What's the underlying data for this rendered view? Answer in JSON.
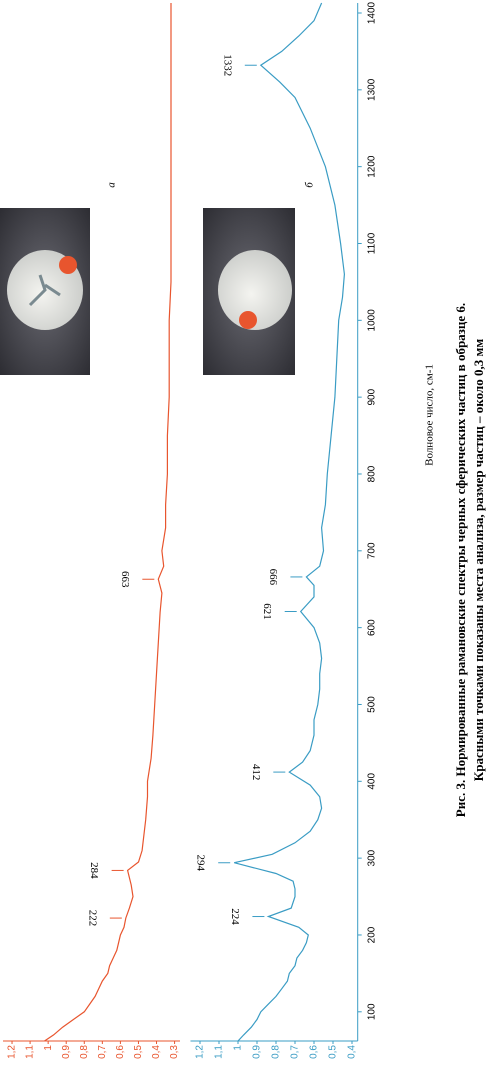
{
  "chart_data": [
    {
      "type": "line",
      "color": "#e8552e",
      "xlim": [
        62,
        1413
      ],
      "ylim": [
        0.27,
        1.25
      ],
      "yticks": [
        {
          "value": 1.2,
          "label": "1,2"
        },
        {
          "value": 1.1,
          "label": "1,1"
        },
        1,
        {
          "value": 0.9,
          "label": "0,9"
        },
        {
          "value": 0.8,
          "label": "0,8"
        },
        {
          "value": 0.7,
          "label": "0,7"
        },
        {
          "value": 0.6,
          "label": "0,6"
        },
        {
          "value": 0.5,
          "label": "0,5"
        },
        {
          "value": 0.4,
          "label": "0,4"
        },
        {
          "value": 0.3,
          "label": "0,3"
        }
      ],
      "x": [
        62,
        70,
        80,
        90,
        100,
        110,
        120,
        130,
        140,
        150,
        160,
        170,
        180,
        190,
        200,
        210,
        222,
        235,
        250,
        265,
        284,
        295,
        310,
        330,
        350,
        380,
        400,
        430,
        460,
        500,
        540,
        580,
        620,
        645,
        663,
        680,
        700,
        730,
        760,
        800,
        850,
        900,
        950,
        1000,
        1050,
        1100,
        1150,
        1200,
        1250,
        1300,
        1350,
        1413
      ],
      "values": [
        1.02,
        0.97,
        0.92,
        0.86,
        0.8,
        0.77,
        0.74,
        0.72,
        0.7,
        0.67,
        0.66,
        0.64,
        0.62,
        0.61,
        0.6,
        0.58,
        0.57,
        0.55,
        0.53,
        0.54,
        0.56,
        0.5,
        0.48,
        0.47,
        0.46,
        0.45,
        0.45,
        0.43,
        0.42,
        0.41,
        0.4,
        0.39,
        0.38,
        0.37,
        0.39,
        0.36,
        0.37,
        0.35,
        0.35,
        0.34,
        0.34,
        0.33,
        0.33,
        0.33,
        0.32,
        0.32,
        0.32,
        0.32,
        0.32,
        0.32,
        0.32,
        0.32
      ],
      "peaks": [
        222,
        284,
        663
      ],
      "inset_label": "а"
    },
    {
      "type": "line",
      "color": "#3a9cc4",
      "xlim": [
        62,
        1413
      ],
      "ylim": [
        0.37,
        1.25
      ],
      "xlabel": "Волновое число, см-1",
      "xticks": [
        100,
        200,
        300,
        400,
        500,
        600,
        700,
        800,
        900,
        1000,
        1100,
        1200,
        1300,
        1400
      ],
      "yticks": [
        {
          "value": 1.2,
          "label": "1,2"
        },
        {
          "value": 1.1,
          "label": "1,1"
        },
        1,
        {
          "value": 0.9,
          "label": "0,9"
        },
        {
          "value": 0.8,
          "label": "0,8"
        },
        {
          "value": 0.7,
          "label": "0,7"
        },
        {
          "value": 0.6,
          "label": "0,6"
        },
        {
          "value": 0.5,
          "label": "0,5"
        },
        {
          "value": 0.4,
          "label": "0,4"
        }
      ],
      "x": [
        62,
        70,
        80,
        90,
        100,
        110,
        120,
        130,
        140,
        150,
        160,
        170,
        180,
        190,
        200,
        210,
        224,
        235,
        250,
        260,
        270,
        280,
        294,
        305,
        320,
        335,
        350,
        365,
        380,
        395,
        412,
        425,
        440,
        460,
        480,
        500,
        520,
        540,
        560,
        580,
        600,
        621,
        640,
        655,
        666,
        680,
        700,
        730,
        760,
        800,
        850,
        900,
        950,
        1000,
        1030,
        1060,
        1100,
        1150,
        1200,
        1250,
        1290,
        1310,
        1332,
        1350,
        1370,
        1390,
        1413
      ],
      "values": [
        1.0,
        0.97,
        0.93,
        0.9,
        0.88,
        0.84,
        0.8,
        0.77,
        0.74,
        0.73,
        0.7,
        0.69,
        0.66,
        0.64,
        0.63,
        0.68,
        0.84,
        0.72,
        0.7,
        0.7,
        0.71,
        0.8,
        1.02,
        0.82,
        0.7,
        0.62,
        0.58,
        0.56,
        0.57,
        0.62,
        0.73,
        0.66,
        0.62,
        0.6,
        0.6,
        0.58,
        0.57,
        0.57,
        0.56,
        0.57,
        0.6,
        0.67,
        0.6,
        0.6,
        0.64,
        0.57,
        0.55,
        0.56,
        0.54,
        0.53,
        0.51,
        0.49,
        0.48,
        0.47,
        0.45,
        0.44,
        0.46,
        0.49,
        0.54,
        0.62,
        0.7,
        0.78,
        0.88,
        0.77,
        0.68,
        0.6,
        0.56
      ],
      "peaks": [
        224,
        294,
        412,
        621,
        666,
        1332
      ],
      "inset_label": "б"
    }
  ],
  "caption": [
    "Рис. 3. Нормированные рамановские спектры черных сферических частиц в образце 6.",
    "Красными точками показаны места анализа, размер частиц – около 0,3 мм"
  ]
}
